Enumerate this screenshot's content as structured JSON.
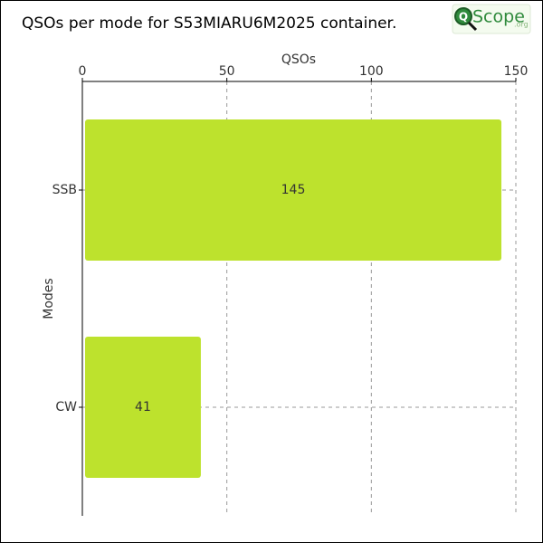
{
  "logo": {
    "mark": "Q",
    "text": "Scope",
    "suffix": ".org"
  },
  "chart_data": {
    "type": "bar",
    "orientation": "horizontal",
    "title": "QSOs per mode for S53MIARU6M2025 container.",
    "x_label": "QSOs",
    "y_label": "Modes",
    "categories": [
      "SSB",
      "CW"
    ],
    "values": [
      145,
      41
    ],
    "color": "#bde22d",
    "xlim": [
      0,
      150
    ],
    "xticks": [
      0,
      50,
      100,
      150
    ],
    "grid": true
  }
}
